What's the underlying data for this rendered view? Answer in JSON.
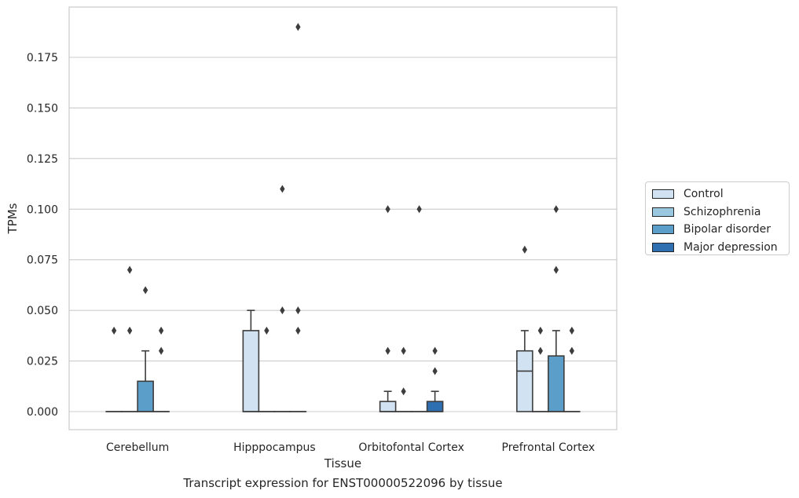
{
  "chart_data": {
    "type": "box",
    "caption": "Transcript expression for ENST00000522096 by tissue",
    "xlabel": "Tissue",
    "ylabel": "TPMs",
    "ylim": [
      -0.009,
      0.19
    ],
    "yticks": [
      "0.000",
      "0.025",
      "0.050",
      "0.075",
      "0.100",
      "0.125",
      "0.150",
      "0.175"
    ],
    "ytick_values": [
      0,
      0.025,
      0.05,
      0.075,
      0.1,
      0.125,
      0.15,
      0.175
    ],
    "categories": [
      "Cerebellum",
      "Hipppocampus",
      "Orbitofontal Cortex",
      "Prefrontal Cortex"
    ],
    "grid": true,
    "legend_position": "right",
    "series": [
      {
        "name": "Control",
        "color": "#d1e2f2",
        "boxes": [
          {
            "q1": 0,
            "median": 0,
            "q3": 0,
            "whislo": 0,
            "whishi": 0,
            "fliers": [
              0.04
            ]
          },
          {
            "q1": 0,
            "median": 0,
            "q3": 0.04,
            "whislo": 0,
            "whishi": 0.05,
            "fliers": []
          },
          {
            "q1": 0,
            "median": 0,
            "q3": 0.005,
            "whislo": 0,
            "whishi": 0.01,
            "fliers": [
              0.1,
              0.03
            ]
          },
          {
            "q1": 0,
            "median": 0.02,
            "q3": 0.03,
            "whislo": 0,
            "whishi": 0.04,
            "fliers": [
              0.08
            ]
          }
        ]
      },
      {
        "name": "Schizophrenia",
        "color": "#9ac8e0",
        "boxes": [
          {
            "q1": 0,
            "median": 0,
            "q3": 0,
            "whislo": 0,
            "whishi": 0,
            "fliers": [
              0.07,
              0.04
            ]
          },
          {
            "q1": 0,
            "median": 0,
            "q3": 0,
            "whislo": 0,
            "whishi": 0,
            "fliers": [
              0.04
            ]
          },
          {
            "q1": 0,
            "median": 0,
            "q3": 0,
            "whislo": 0,
            "whishi": 0,
            "fliers": [
              0.03,
              0.01
            ]
          },
          {
            "q1": 0,
            "median": 0,
            "q3": 0,
            "whislo": 0,
            "whishi": 0,
            "fliers": [
              0.04,
              0.03
            ]
          }
        ]
      },
      {
        "name": "Bipolar disorder",
        "color": "#5a9ec9",
        "boxes": [
          {
            "q1": 0,
            "median": 0,
            "q3": 0.015,
            "whislo": 0,
            "whishi": 0.03,
            "fliers": [
              0.06
            ]
          },
          {
            "q1": 0,
            "median": 0,
            "q3": 0,
            "whislo": 0,
            "whishi": 0,
            "fliers": [
              0.11,
              0.05
            ]
          },
          {
            "q1": 0,
            "median": 0,
            "q3": 0,
            "whislo": 0,
            "whishi": 0,
            "fliers": [
              0.1
            ]
          },
          {
            "q1": 0,
            "median": 0,
            "q3": 0.0275,
            "whislo": 0,
            "whishi": 0.04,
            "fliers": [
              0.1,
              0.07
            ]
          }
        ]
      },
      {
        "name": "Major depression",
        "color": "#2d6fb0",
        "boxes": [
          {
            "q1": 0,
            "median": 0,
            "q3": 0,
            "whislo": 0,
            "whishi": 0,
            "fliers": [
              0.04,
              0.03
            ]
          },
          {
            "q1": 0,
            "median": 0,
            "q3": 0,
            "whislo": 0,
            "whishi": 0,
            "fliers": [
              0.19,
              0.05,
              0.04
            ]
          },
          {
            "q1": 0,
            "median": 0,
            "q3": 0.005,
            "whislo": 0,
            "whishi": 0.01,
            "fliers": [
              0.03,
              0.02
            ]
          },
          {
            "q1": 0,
            "median": 0,
            "q3": 0,
            "whislo": 0,
            "whishi": 0,
            "fliers": [
              0.04,
              0.03
            ]
          }
        ]
      }
    ]
  }
}
